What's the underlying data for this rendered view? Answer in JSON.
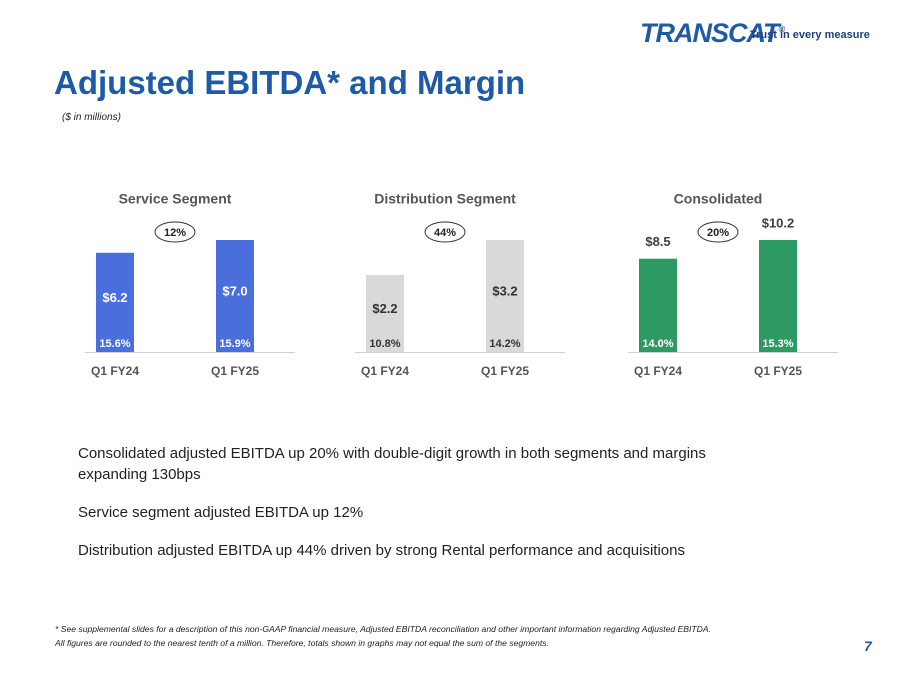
{
  "header": {
    "logo": "TRANSCAT",
    "logo_mark": "®",
    "tagline": "Trust in every measure"
  },
  "title": "Adjusted EBITDA* and Margin",
  "subtitle": "($ in millions)",
  "chart_data": [
    {
      "type": "bar",
      "title": "Service Segment",
      "categories": [
        "Q1 FY24",
        "Q1 FY25"
      ],
      "values": [
        6.2,
        7.0
      ],
      "value_labels": [
        "$6.2",
        "$7.0"
      ],
      "margin_labels": [
        "15.6%",
        "15.9%"
      ],
      "annotation": "12%",
      "color": "#4a6fdc",
      "value_label_position": "inside",
      "label_color": "#ffffff",
      "margin_label_color": "#ffffff"
    },
    {
      "type": "bar",
      "title": "Distribution Segment",
      "categories": [
        "Q1 FY24",
        "Q1 FY25"
      ],
      "values": [
        2.2,
        3.2
      ],
      "value_labels": [
        "$2.2",
        "$3.2"
      ],
      "margin_labels": [
        "10.8%",
        "14.2%"
      ],
      "annotation": "44%",
      "color": "#d9d9d9",
      "value_label_position": "inside",
      "label_color": "#333333",
      "margin_label_color": "#333333"
    },
    {
      "type": "bar",
      "title": "Consolidated",
      "categories": [
        "Q1 FY24",
        "Q1 FY25"
      ],
      "values": [
        8.5,
        10.2
      ],
      "value_labels": [
        "$8.5",
        "$10.2"
      ],
      "margin_labels": [
        "14.0%",
        "15.3%"
      ],
      "annotation": "20%",
      "color": "#2e9a63",
      "value_label_position": "above",
      "label_color": "#404040",
      "margin_label_color": "#ffffff"
    }
  ],
  "bullets": [
    "Consolidated adjusted EBITDA up 20% with double-digit growth in both segments and margins expanding 130bps",
    "Service segment adjusted EBITDA up 12%",
    "Distribution adjusted EBITDA up 44% driven by strong Rental performance and acquisitions"
  ],
  "footnote": [
    "* See supplemental slides for a description of this non-GAAP financial measure, Adjusted EBITDA reconciliation and other important information regarding Adjusted EBITDA.",
    "All figures are rounded to the nearest tenth of a million. Therefore, totals shown in graphs may not equal the sum of the segments."
  ],
  "page_number": "7"
}
